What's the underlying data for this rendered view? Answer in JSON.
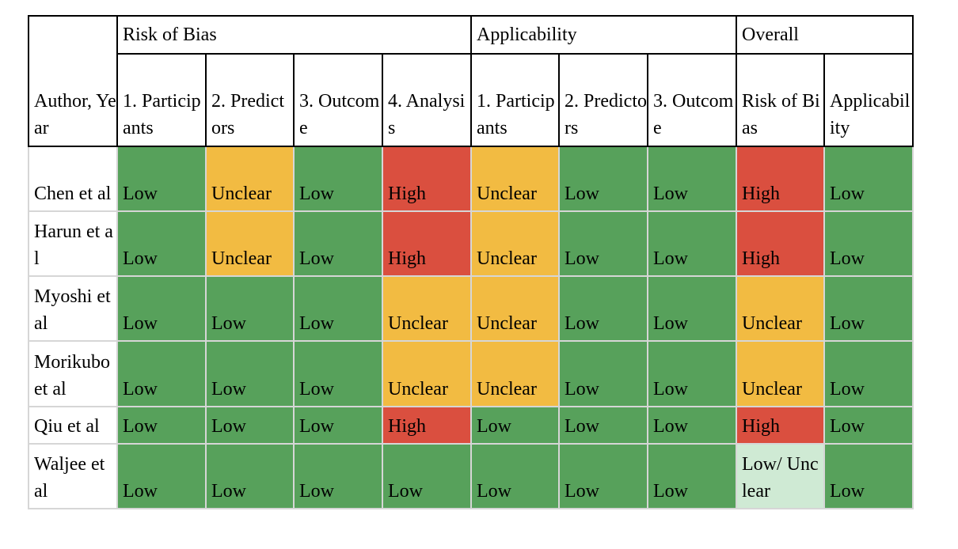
{
  "header": {
    "author_col": "Author, Year",
    "groups": [
      {
        "label": "Risk of Bias",
        "span": 4
      },
      {
        "label": "Applicability",
        "span": 3
      },
      {
        "label": "Overall",
        "span": 2
      }
    ],
    "columns": [
      "1. Participants",
      "2. Predictors",
      "3. Outcome",
      "4. Analysis",
      "1. Participants",
      "2. Predictors",
      "3. Outcome",
      "Risk of Bias",
      "Applicability"
    ]
  },
  "rating_colors": {
    "Low": "#57a15b",
    "Unclear": "#f2bb42",
    "High": "#da4f3f",
    "Low/ Unclear": "#cfead4"
  },
  "rows": [
    {
      "author": "Chen et al",
      "cells": [
        "Low",
        "Unclear",
        "Low",
        "High",
        "Unclear",
        "Low",
        "Low",
        "High",
        "Low"
      ]
    },
    {
      "author": "Harun et al",
      "cells": [
        "Low",
        "Unclear",
        "Low",
        "High",
        "Unclear",
        "Low",
        "Low",
        "High",
        "Low"
      ]
    },
    {
      "author": "Myoshi et al",
      "cells": [
        "Low",
        "Low",
        "Low",
        "Unclear",
        "Unclear",
        "Low",
        "Low",
        "Unclear",
        "Low"
      ]
    },
    {
      "author": "Morikubo et al",
      "cells": [
        "Low",
        "Low",
        "Low",
        "Unclear",
        "Unclear",
        "Low",
        "Low",
        "Unclear",
        "Low"
      ]
    },
    {
      "author": "Qiu et al",
      "cells": [
        "Low",
        "Low",
        "Low",
        "High",
        "Low",
        "Low",
        "Low",
        "High",
        "Low"
      ]
    },
    {
      "author": "Waljee et al",
      "cells": [
        "Low",
        "Low",
        "Low",
        "Low",
        "Low",
        "Low",
        "Low",
        "Low/ Unclear",
        "Low"
      ]
    }
  ]
}
